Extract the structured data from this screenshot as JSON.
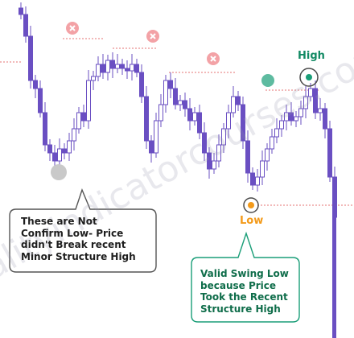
{
  "chart_data": {
    "type": "candlestick",
    "annotations": {
      "high_label": "High",
      "low_label": "Low",
      "left_note": [
        "These are Not",
        "Confirm Low- Price",
        "didn't Break recent",
        "Minor Structure High"
      ],
      "right_note": [
        "Valid Swing Low",
        "because Price",
        "Took the Recent",
        "Structure High"
      ],
      "invalid_marker_icon": "x-circle-icon",
      "watermark": "qualityindicatorcourses.com"
    },
    "colors": {
      "candle_up_fill": "#ffffff",
      "candle_up_border": "#6a4fc2",
      "candle_down": "#6a4fc2",
      "invalid_marker": "#f3a2a6",
      "valid_marker": "#1a9e78",
      "low_marker": "#f39a1a",
      "structure_line": "#e57373",
      "left_note_border": "#555555",
      "right_note_border": "#1a9e78",
      "right_note_text": "#0f6d4a",
      "unconfirmed_low_dot": "#c9c9c9"
    }
  }
}
